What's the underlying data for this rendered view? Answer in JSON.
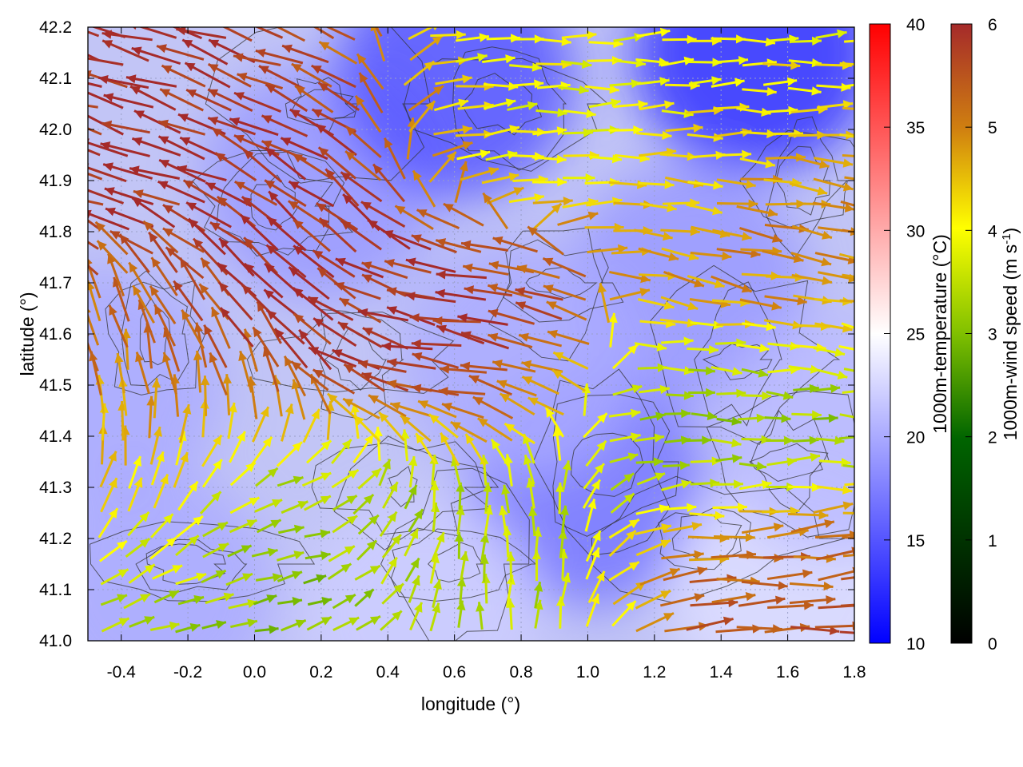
{
  "chart_data": {
    "type": "heatmap",
    "subtype": "wind-vector-field-over-temperature-map-with-contours",
    "xlabel": "longitude (°)",
    "ylabel": "latitude (°)",
    "xlim": [
      -0.5,
      1.8
    ],
    "ylim": [
      41.0,
      42.2
    ],
    "x_ticks": [
      "-0.4",
      "-0.2",
      "0.0",
      "0.2",
      "0.4",
      "0.6",
      "0.8",
      "1.0",
      "1.2",
      "1.4",
      "1.6",
      "1.8"
    ],
    "x_tick_values": [
      -0.4,
      -0.2,
      0.0,
      0.2,
      0.4,
      0.6,
      0.8,
      1.0,
      1.2,
      1.4,
      1.6,
      1.8
    ],
    "y_ticks": [
      "41.0",
      "41.1",
      "41.2",
      "41.3",
      "41.4",
      "41.5",
      "41.6",
      "41.7",
      "41.8",
      "41.9",
      "42.0",
      "42.1",
      "42.2"
    ],
    "y_tick_values": [
      41.0,
      41.1,
      41.2,
      41.3,
      41.4,
      41.5,
      41.6,
      41.7,
      41.8,
      41.9,
      42.0,
      42.1,
      42.2
    ],
    "grid": true,
    "temperature_colorbar": {
      "label": "1000m-temperature (°C)",
      "range": [
        10,
        40
      ],
      "ticks": [
        "10",
        "15",
        "20",
        "25",
        "30",
        "35",
        "40"
      ],
      "tick_values": [
        10,
        15,
        20,
        25,
        30,
        35,
        40
      ],
      "colors": [
        "#0000ff",
        "#ffffff",
        "#ff0000"
      ]
    },
    "wind_colorbar": {
      "label": "1000m-wind speed",
      "label_units": "(m s",
      "label_exp": "-1",
      "label_close": ")",
      "range": [
        0,
        6
      ],
      "ticks": [
        "0",
        "1",
        "2",
        "3",
        "4",
        "5",
        "6"
      ],
      "tick_values": [
        0,
        1,
        2,
        3,
        4,
        5,
        6
      ],
      "colors": [
        "#000000",
        "#006400",
        "#80c000",
        "#ffff00",
        "#d08010",
        "#a52a2a"
      ]
    },
    "temperature_field": [
      {
        "lon": -0.45,
        "lat": 41.5,
        "value": 20
      },
      {
        "lon": 0.2,
        "lat": 41.9,
        "value": 19
      },
      {
        "lon": 0.6,
        "lat": 42.1,
        "value": 15
      },
      {
        "lon": 1.5,
        "lat": 42.15,
        "value": 13
      },
      {
        "lon": 1.3,
        "lat": 41.7,
        "value": 19
      },
      {
        "lon": 1.0,
        "lat": 41.3,
        "value": 17
      },
      {
        "lon": 1.6,
        "lat": 41.1,
        "value": 23
      },
      {
        "lon": 0.5,
        "lat": 41.05,
        "value": 22
      },
      {
        "lon": -0.3,
        "lat": 41.1,
        "value": 20
      },
      {
        "lon": 0.8,
        "lat": 41.55,
        "value": 20
      },
      {
        "lon": 1.75,
        "lat": 41.4,
        "value": 21
      }
    ],
    "wind_regions": [
      {
        "lon": [
          -0.5,
          0.3
        ],
        "lat": [
          41.75,
          42.2
        ],
        "u": -4.6,
        "v": 1.4,
        "speed": 6
      },
      {
        "lon": [
          -0.1,
          0.35
        ],
        "lat": [
          41.45,
          41.95
        ],
        "u": -1.5,
        "v": 2.6,
        "speed": 6
      },
      {
        "lon": [
          0.3,
          0.95
        ],
        "lat": [
          41.4,
          41.75
        ],
        "u": -5.0,
        "v": 0.9,
        "speed": 6
      },
      {
        "lon": [
          -0.5,
          -0.1
        ],
        "lat": [
          41.2,
          41.7
        ],
        "u": -0.7,
        "v": 3.0,
        "speed": 5
      },
      {
        "lon": [
          0.5,
          1.8
        ],
        "lat": [
          41.85,
          42.2
        ],
        "u": 4.2,
        "v": 0.2,
        "speed": 3.5
      },
      {
        "lon": [
          1.2,
          1.8
        ],
        "lat": [
          41.6,
          42.0
        ],
        "u": 4.0,
        "v": -0.9,
        "speed": 5
      },
      {
        "lon": [
          1.0,
          1.8
        ],
        "lat": [
          41.25,
          41.6
        ],
        "u": 2.6,
        "v": 0.0,
        "speed": 2.5
      },
      {
        "lon": [
          1.2,
          1.8
        ],
        "lat": [
          41.0,
          41.25
        ],
        "u": 4.0,
        "v": 0.3,
        "speed": 5.5
      },
      {
        "lon": [
          -0.5,
          0.6
        ],
        "lat": [
          41.0,
          41.4
        ],
        "u": 2.5,
        "v": 0.3,
        "speed": 2.5
      },
      {
        "lon": [
          0.3,
          1.0
        ],
        "lat": [
          41.0,
          41.35
        ],
        "u": -0.4,
        "v": 2.5,
        "speed": 3
      }
    ]
  }
}
